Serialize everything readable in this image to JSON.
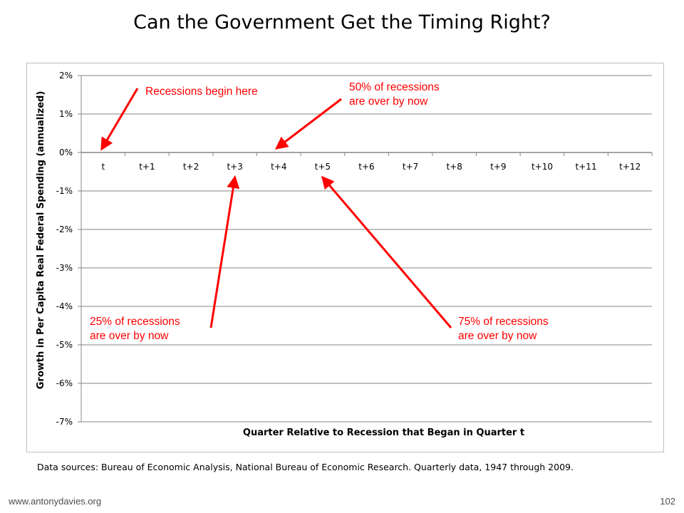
{
  "slide": {
    "title": "Can the Government Get the Timing Right?",
    "source_note": "Data sources: Bureau of Economic Analysis, National Bureau of Economic Research. Quarterly data, 1947 through 2009.",
    "footer_url": "www.antonydavies.org",
    "page_number": "102"
  },
  "chart_data": {
    "type": "line",
    "xlabel": "Quarter Relative to Recession that Began in Quarter t",
    "ylabel": "Growth in Per Capita Real Federal Spending (annualized)",
    "categories": [
      "t",
      "t+1",
      "t+2",
      "t+3",
      "t+4",
      "t+5",
      "t+6",
      "t+7",
      "t+8",
      "t+9",
      "t+10",
      "t+11",
      "t+12"
    ],
    "yticks": [
      0.02,
      0.01,
      0.0,
      -0.01,
      -0.02,
      -0.03,
      -0.04,
      -0.05,
      -0.06,
      -0.07
    ],
    "ytick_labels": [
      "2%",
      "1%",
      "0%",
      "-1%",
      "-2%",
      "-3%",
      "-4%",
      "-5%",
      "-6%",
      "-7%"
    ],
    "ylim": [
      -0.07,
      0.02
    ],
    "grid": true,
    "series": [],
    "annotations": [
      {
        "lines": [
          "Recessions begin here"
        ],
        "target_category": "t"
      },
      {
        "lines": [
          "50% of recessions",
          "are over by now"
        ],
        "target_category": "t+4"
      },
      {
        "lines": [
          "25% of recessions",
          "are over by now"
        ],
        "target_category": "t+3"
      },
      {
        "lines": [
          "75% of recessions",
          "are over by now"
        ],
        "target_category": "t+5"
      }
    ],
    "colors": {
      "annotation": "#ff0000",
      "grid": "#868686",
      "axis": "#868686"
    }
  }
}
